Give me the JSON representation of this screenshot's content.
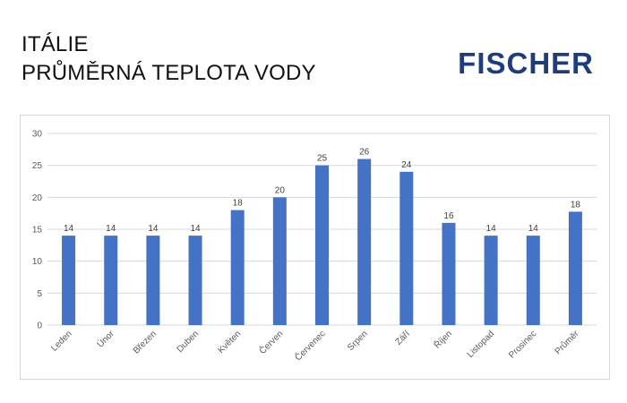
{
  "header": {
    "line1": "ITÁLIE",
    "line2": "PRŮMĚRNÁ TEPLOTA VODY"
  },
  "logo": {
    "text": "FISCHER",
    "color": "#1f3d7a"
  },
  "chart_data": {
    "type": "bar",
    "title": "",
    "xlabel": "",
    "ylabel": "",
    "categories": [
      "Leden",
      "Únor",
      "Březen",
      "Duben",
      "Květen",
      "Červen",
      "Červenec",
      "Srpen",
      "Září",
      "Říjen",
      "Listopad",
      "Prosinec",
      "Průměr"
    ],
    "values": [
      14,
      14,
      14,
      14,
      18,
      20,
      25,
      26,
      24,
      16,
      14,
      14,
      17.75
    ],
    "data_labels": [
      "14",
      "14",
      "14",
      "14",
      "18",
      "20",
      "25",
      "26",
      "24",
      "16",
      "14",
      "14",
      "18"
    ],
    "ylim": [
      0,
      30
    ],
    "yticks": [
      0,
      5,
      10,
      15,
      20,
      25,
      30
    ],
    "grid": true,
    "bar_color": "#4472c4"
  }
}
